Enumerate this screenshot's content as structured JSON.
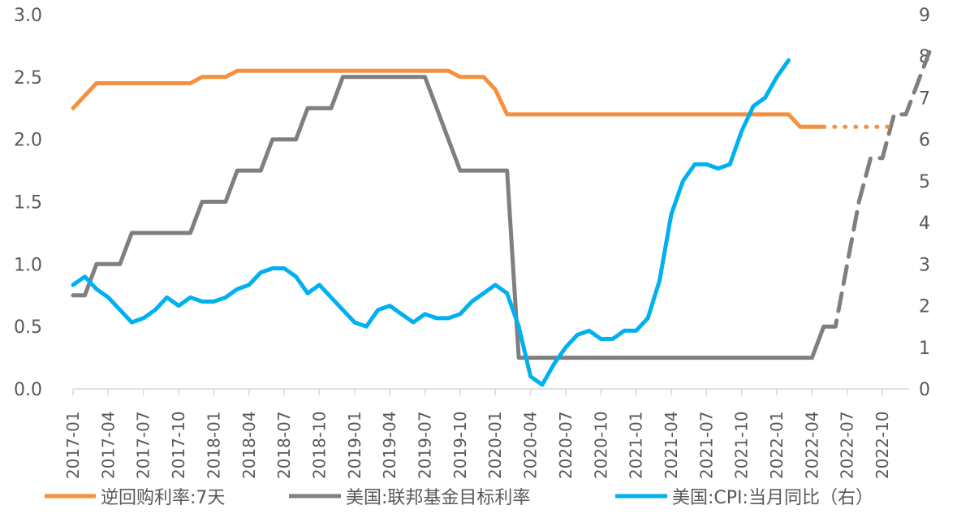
{
  "chart_data": {
    "type": "line",
    "title": "",
    "xlabel": "",
    "ylabel": "",
    "ylim_left": [
      0,
      3
    ],
    "ylim_right": [
      0,
      9
    ],
    "left_ticks": [
      "3.0",
      "2.5",
      "2.0",
      "1.5",
      "1.0",
      "0.5",
      "0.0"
    ],
    "right_ticks": [
      "9",
      "8",
      "7",
      "6",
      "5",
      "4",
      "3",
      "2",
      "1",
      "0"
    ],
    "x_tick_labels": [
      "2017-01",
      "2017-04",
      "2017-07",
      "2017-10",
      "2018-01",
      "2018-04",
      "2018-07",
      "2018-10",
      "2019-01",
      "2019-04",
      "2019-07",
      "2019-10",
      "2020-01",
      "2020-04",
      "2020-07",
      "2020-10",
      "2021-01",
      "2021-04",
      "2021-07",
      "2021-10",
      "2022-01",
      "2022-04",
      "2022-07",
      "2022-10"
    ],
    "x_start": "2017-01",
    "x_months": 72,
    "legend": [
      "逆回购利率:7天",
      "美国:联邦基金目标利率",
      "美国:CPI:当月同比（右）"
    ],
    "series": [
      {
        "name": "逆回购利率:7天",
        "axis": "left",
        "color": "#F4913F",
        "solid_points": [
          [
            0,
            2.25
          ],
          [
            2,
            2.45
          ],
          [
            4,
            2.45
          ],
          [
            6,
            2.45
          ],
          [
            8,
            2.45
          ],
          [
            10,
            2.45
          ],
          [
            11,
            2.5
          ],
          [
            12,
            2.5
          ],
          [
            13,
            2.5
          ],
          [
            14,
            2.55
          ],
          [
            16,
            2.55
          ],
          [
            18,
            2.55
          ],
          [
            20,
            2.55
          ],
          [
            22,
            2.55
          ],
          [
            24,
            2.55
          ],
          [
            26,
            2.55
          ],
          [
            28,
            2.55
          ],
          [
            30,
            2.55
          ],
          [
            32,
            2.55
          ],
          [
            33,
            2.5
          ],
          [
            35,
            2.5
          ],
          [
            36,
            2.4
          ],
          [
            37,
            2.2
          ],
          [
            40,
            2.2
          ],
          [
            50,
            2.2
          ],
          [
            60,
            2.2
          ],
          [
            61,
            2.2
          ],
          [
            62,
            2.1
          ],
          [
            63,
            2.1
          ],
          [
            64,
            2.1
          ]
        ],
        "projected_points": [
          [
            64,
            2.1
          ],
          [
            70,
            2.1
          ]
        ]
      },
      {
        "name": "美国:联邦基金目标利率",
        "axis": "left",
        "color": "#7F7F7F",
        "solid_points": [
          [
            0,
            0.75
          ],
          [
            1,
            0.75
          ],
          [
            2,
            1.0
          ],
          [
            3,
            1.0
          ],
          [
            4,
            1.0
          ],
          [
            5,
            1.25
          ],
          [
            6,
            1.25
          ],
          [
            7,
            1.25
          ],
          [
            8,
            1.25
          ],
          [
            9,
            1.25
          ],
          [
            10,
            1.25
          ],
          [
            11,
            1.5
          ],
          [
            12,
            1.5
          ],
          [
            13,
            1.5
          ],
          [
            14,
            1.75
          ],
          [
            15,
            1.75
          ],
          [
            16,
            1.75
          ],
          [
            17,
            2.0
          ],
          [
            18,
            2.0
          ],
          [
            19,
            2.0
          ],
          [
            20,
            2.25
          ],
          [
            21,
            2.25
          ],
          [
            22,
            2.25
          ],
          [
            23,
            2.5
          ],
          [
            24,
            2.5
          ],
          [
            26,
            2.5
          ],
          [
            28,
            2.5
          ],
          [
            29,
            2.5
          ],
          [
            30,
            2.5
          ],
          [
            31,
            2.25
          ],
          [
            32,
            2.0
          ],
          [
            33,
            1.75
          ],
          [
            34,
            1.75
          ],
          [
            35,
            1.75
          ],
          [
            36,
            1.75
          ],
          [
            37,
            1.75
          ],
          [
            38,
            0.25
          ],
          [
            40,
            0.25
          ],
          [
            50,
            0.25
          ],
          [
            60,
            0.25
          ],
          [
            62,
            0.25
          ],
          [
            63,
            0.25
          ],
          [
            64,
            0.5
          ]
        ],
        "projected_points": [
          [
            64,
            0.5
          ],
          [
            65,
            0.5
          ],
          [
            67,
            1.5
          ],
          [
            68,
            1.85
          ],
          [
            69,
            1.85
          ],
          [
            70,
            2.2
          ],
          [
            71,
            2.2
          ],
          [
            73,
            2.7
          ]
        ]
      },
      {
        "name": "美国:CPI:当月同比（右）",
        "axis": "right",
        "color": "#00B0F0",
        "solid_points": [
          [
            0,
            2.5
          ],
          [
            1,
            2.7
          ],
          [
            2,
            2.4
          ],
          [
            3,
            2.2
          ],
          [
            4,
            1.9
          ],
          [
            5,
            1.6
          ],
          [
            6,
            1.7
          ],
          [
            7,
            1.9
          ],
          [
            8,
            2.2
          ],
          [
            9,
            2.0
          ],
          [
            10,
            2.2
          ],
          [
            11,
            2.1
          ],
          [
            12,
            2.1
          ],
          [
            13,
            2.2
          ],
          [
            14,
            2.4
          ],
          [
            15,
            2.5
          ],
          [
            16,
            2.8
          ],
          [
            17,
            2.9
          ],
          [
            18,
            2.9
          ],
          [
            19,
            2.7
          ],
          [
            20,
            2.3
          ],
          [
            21,
            2.5
          ],
          [
            22,
            2.2
          ],
          [
            23,
            1.9
          ],
          [
            24,
            1.6
          ],
          [
            25,
            1.5
          ],
          [
            26,
            1.9
          ],
          [
            27,
            2.0
          ],
          [
            28,
            1.8
          ],
          [
            29,
            1.6
          ],
          [
            30,
            1.8
          ],
          [
            31,
            1.7
          ],
          [
            32,
            1.7
          ],
          [
            33,
            1.8
          ],
          [
            34,
            2.1
          ],
          [
            35,
            2.3
          ],
          [
            36,
            2.5
          ],
          [
            37,
            2.3
          ],
          [
            38,
            1.5
          ],
          [
            39,
            0.3
          ],
          [
            40,
            0.1
          ],
          [
            41,
            0.6
          ],
          [
            42,
            1.0
          ],
          [
            43,
            1.3
          ],
          [
            44,
            1.4
          ],
          [
            45,
            1.2
          ],
          [
            46,
            1.2
          ],
          [
            47,
            1.4
          ],
          [
            48,
            1.4
          ],
          [
            49,
            1.7
          ],
          [
            50,
            2.6
          ],
          [
            51,
            4.2
          ],
          [
            52,
            5.0
          ],
          [
            53,
            5.4
          ],
          [
            54,
            5.4
          ],
          [
            55,
            5.3
          ],
          [
            56,
            5.4
          ],
          [
            57,
            6.2
          ],
          [
            58,
            6.8
          ],
          [
            59,
            7.0
          ],
          [
            60,
            7.5
          ],
          [
            61,
            7.9
          ]
        ],
        "projected_points": []
      }
    ]
  }
}
